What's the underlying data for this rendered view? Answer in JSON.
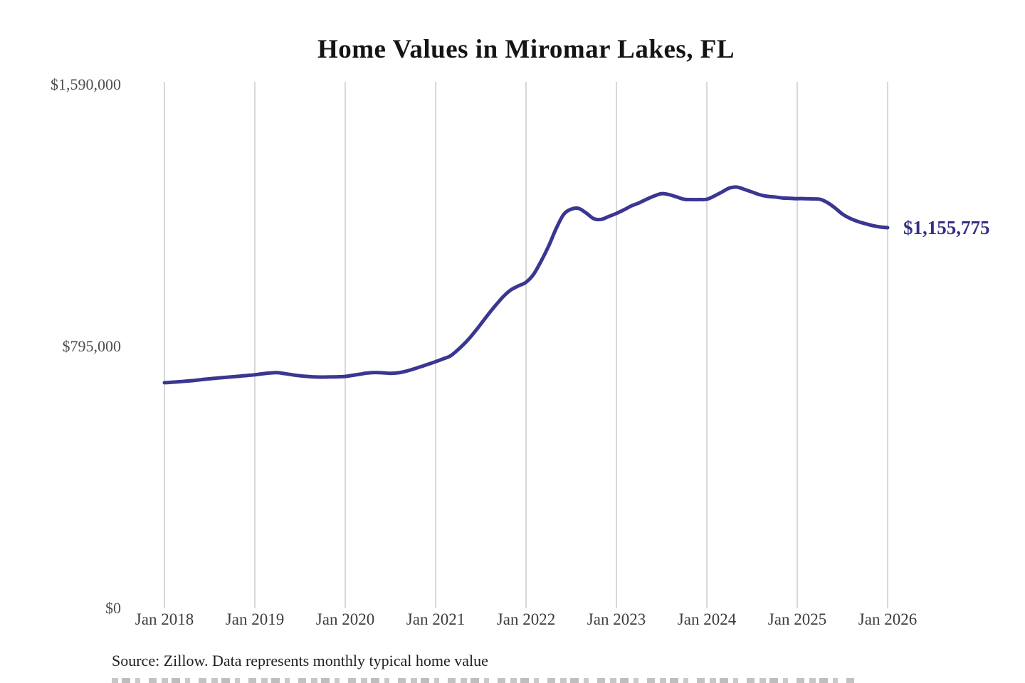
{
  "title": "Home Values in Miromar Lakes, FL",
  "colors": {
    "line": "#3a3691",
    "end_label": "#343086",
    "grid": "#cccccc",
    "y_axis_text": "#4d4d4d",
    "x_axis_text": "#3e3e3e",
    "title_text": "#141414",
    "source_text": "#212121",
    "background": "#ffffff"
  },
  "y_axis": {
    "labels": [
      {
        "text": "$1,590,000",
        "value": 1590000
      },
      {
        "text": "$795,000",
        "value": 795000
      },
      {
        "text": "$0",
        "value": 0
      }
    ]
  },
  "x_axis": {
    "labels": [
      "Jan 2018",
      "Jan 2019",
      "Jan 2020",
      "Jan 2021",
      "Jan 2022",
      "Jan 2023",
      "Jan 2024",
      "Jan 2025",
      "Jan 2026"
    ]
  },
  "end_label": "$1,155,775",
  "source": "Source: Zillow. Data represents monthly typical home value",
  "chart_data": {
    "type": "line",
    "title": "Home Values in Miromar Lakes, FL",
    "xlabel": "",
    "ylabel": "",
    "ylim": [
      0,
      1590000
    ],
    "y_ticks": [
      0,
      795000,
      1590000
    ],
    "x_ticks": [
      "Jan 2018",
      "Jan 2019",
      "Jan 2020",
      "Jan 2021",
      "Jan 2022",
      "Jan 2023",
      "Jan 2024",
      "Jan 2025",
      "Jan 2026"
    ],
    "grid": "vertical-only",
    "legend": "none",
    "frequency": "monthly",
    "x_start": "Jan 2018",
    "x_end": "Jan 2026",
    "annotation": {
      "text": "$1,155,775",
      "position": "line-end"
    },
    "series": [
      {
        "name": "Typical home value",
        "color": "#3a3691",
        "end_value": 1155775,
        "values": [
          685000,
          686500,
          688000,
          690000,
          692000,
          694500,
          697000,
          699000,
          701000,
          703000,
          705000,
          707000,
          709000,
          712000,
          714500,
          715500,
          712500,
          709000,
          706000,
          704000,
          702500,
          702000,
          702500,
          703000,
          704000,
          707500,
          711000,
          714500,
          716000,
          715000,
          713500,
          715000,
          719500,
          726000,
          733500,
          741000,
          749000,
          757500,
          767000,
          786000,
          808000,
          834000,
          863000,
          893000,
          921000,
          947000,
          967000,
          979000,
          990000,
          1014000,
          1054000,
          1100000,
          1153000,
          1196000,
          1212000,
          1214000,
          1200000,
          1183000,
          1181000,
          1190000,
          1199000,
          1210000,
          1222000,
          1231000,
          1242000,
          1252000,
          1259000,
          1256000,
          1249000,
          1242000,
          1241000,
          1241000,
          1242000,
          1252000,
          1264000,
          1276000,
          1279000,
          1272000,
          1264000,
          1256000,
          1251000,
          1249000,
          1246000,
          1245000,
          1244000,
          1244000,
          1243000,
          1242000,
          1232000,
          1216000,
          1197000,
          1184000,
          1175000,
          1168000,
          1162000,
          1158000,
          1155775
        ]
      }
    ]
  }
}
